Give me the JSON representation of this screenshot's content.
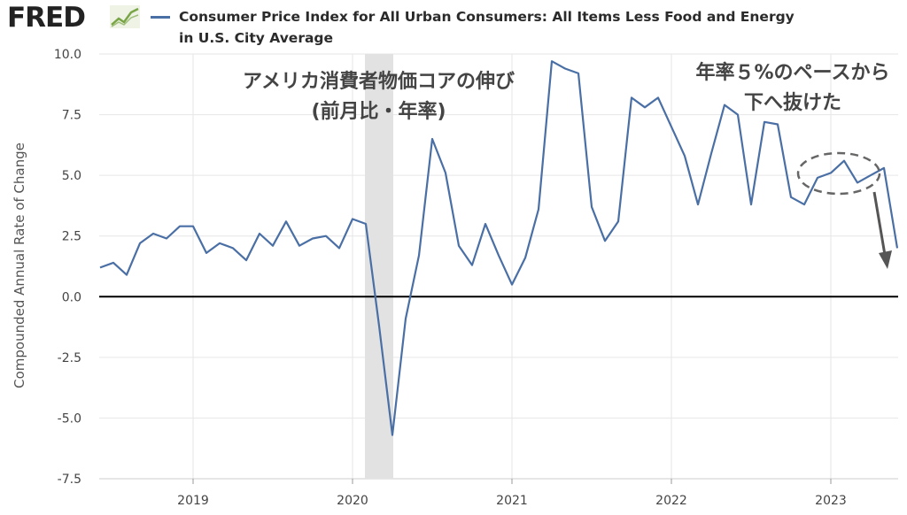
{
  "header": {
    "logo_text": "FRED",
    "logo_icon": "chart-line-icon"
  },
  "chart_data": {
    "type": "line",
    "title": "Consumer Price Index for All Urban Consumers: All Items Less Food and Energy in U.S. City Average",
    "ylabel": "Compounded Annual Rate of Change",
    "ylim": [
      -7.5,
      10.0
    ],
    "yticks": [
      "10.0",
      "7.5",
      "5.0",
      "2.5",
      "0.0",
      "-2.5",
      "-5.0",
      "-7.5"
    ],
    "xticks": [
      "2019",
      "2020",
      "2021",
      "2022",
      "2023"
    ],
    "recession_shading": [
      "2020-02",
      "2020-04"
    ],
    "line_color": "#4a6fa5",
    "series": [
      {
        "name": "Consumer Price Index for All Urban Consumers: All Items Less Food and Energy in U.S. City Average",
        "x": [
          "2018-06",
          "2018-07",
          "2018-08",
          "2018-09",
          "2018-10",
          "2018-11",
          "2018-12",
          "2019-01",
          "2019-02",
          "2019-03",
          "2019-04",
          "2019-05",
          "2019-06",
          "2019-07",
          "2019-08",
          "2019-09",
          "2019-10",
          "2019-11",
          "2019-12",
          "2020-01",
          "2020-02",
          "2020-03",
          "2020-04",
          "2020-05",
          "2020-06",
          "2020-07",
          "2020-08",
          "2020-09",
          "2020-10",
          "2020-11",
          "2020-12",
          "2021-01",
          "2021-02",
          "2021-03",
          "2021-04",
          "2021-05",
          "2021-06",
          "2021-07",
          "2021-08",
          "2021-09",
          "2021-10",
          "2021-11",
          "2021-12",
          "2022-01",
          "2022-02",
          "2022-03",
          "2022-04",
          "2022-05",
          "2022-06",
          "2022-07",
          "2022-08",
          "2022-09",
          "2022-10",
          "2022-11",
          "2022-12",
          "2023-01",
          "2023-02",
          "2023-03",
          "2023-04",
          "2023-05",
          "2023-06"
        ],
        "values": [
          1.2,
          1.4,
          0.9,
          2.2,
          2.6,
          2.4,
          2.9,
          2.9,
          1.8,
          2.2,
          2.0,
          1.5,
          2.6,
          2.1,
          3.1,
          2.1,
          2.4,
          2.5,
          2.0,
          3.2,
          3.0,
          -1.2,
          -5.7,
          -0.9,
          1.7,
          6.5,
          5.1,
          2.1,
          1.3,
          3.0,
          1.7,
          0.5,
          1.6,
          3.6,
          9.7,
          9.4,
          9.2,
          3.7,
          2.3,
          3.1,
          8.2,
          7.8,
          8.2,
          7.0,
          5.8,
          3.8,
          5.9,
          7.9,
          7.5,
          3.8,
          7.2,
          7.1,
          4.1,
          3.8,
          4.9,
          5.1,
          5.6,
          4.7,
          5.0,
          5.3,
          2.0
        ]
      }
    ],
    "annotations": [
      {
        "lines": [
          "アメリカ消費者物価コアの伸び",
          "(前月比・年率)"
        ]
      },
      {
        "lines": [
          "年率５%のペースから",
          "下へ抜けた"
        ]
      }
    ]
  }
}
